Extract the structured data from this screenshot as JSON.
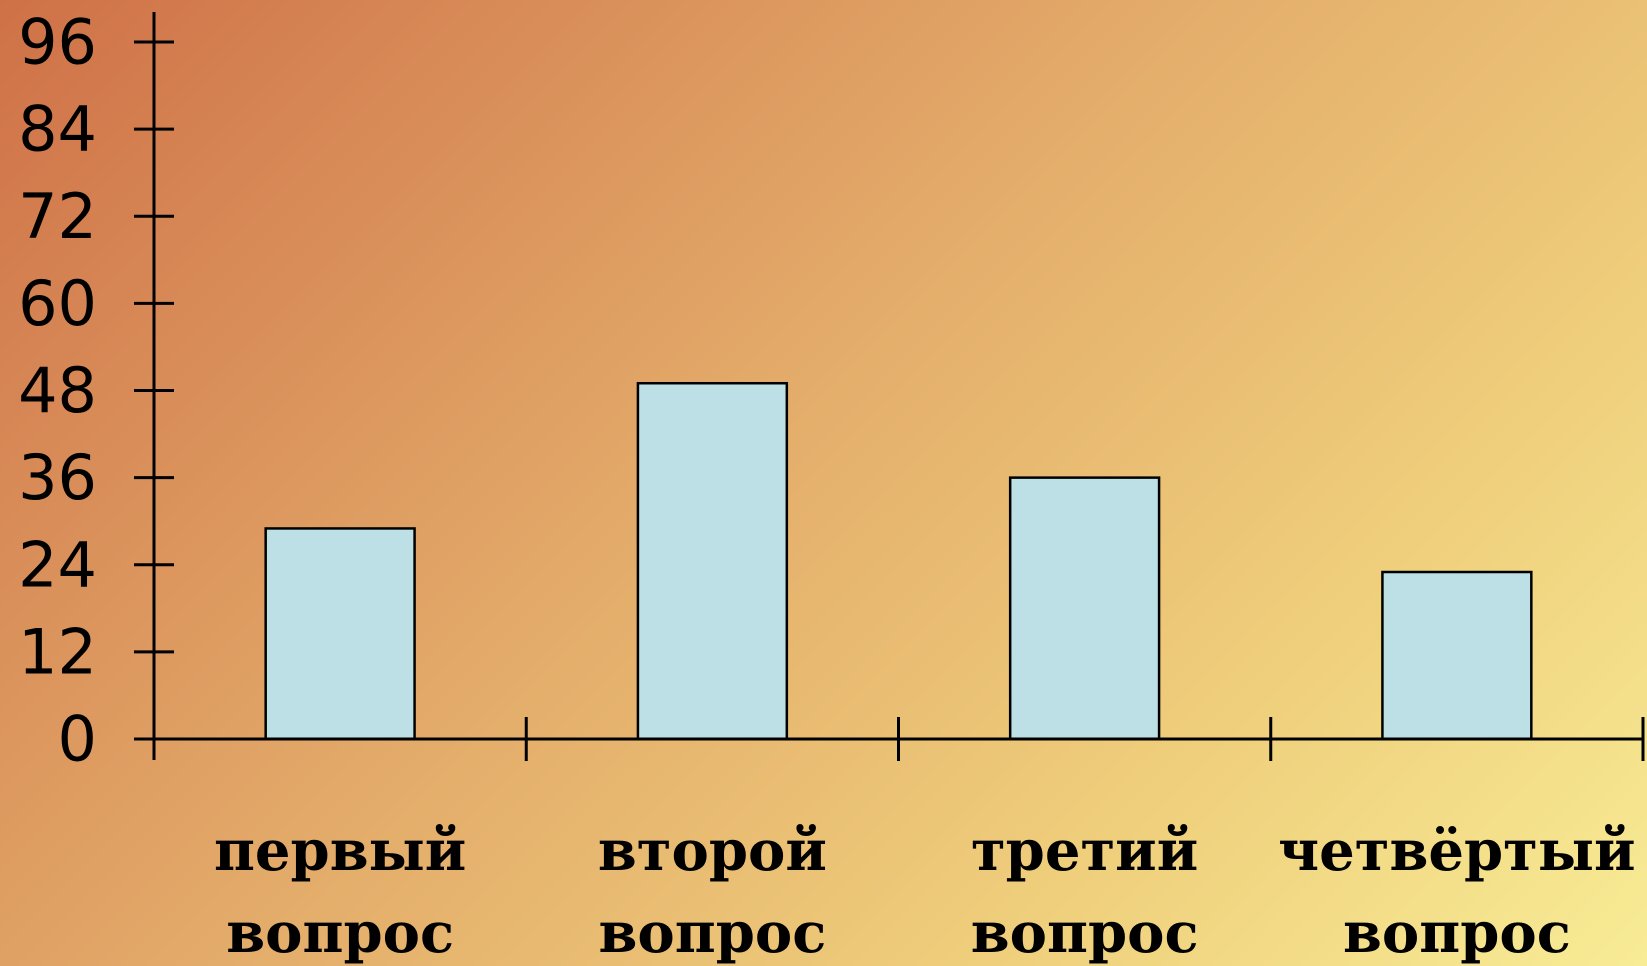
{
  "chart_data": {
    "type": "bar",
    "title": "",
    "xlabel": "",
    "ylabel": "",
    "categories": [
      [
        "первый",
        "вопрос"
      ],
      [
        "второй",
        "вопрос"
      ],
      [
        "третий",
        "вопрос"
      ],
      [
        "четвёртый",
        "вопрос"
      ]
    ],
    "values": [
      29,
      49,
      36,
      23
    ],
    "ylim": [
      0,
      96
    ],
    "yticks": [
      0,
      12,
      24,
      36,
      48,
      60,
      72,
      84,
      96
    ],
    "grid": false,
    "legend": "none",
    "colors": {
      "bar_fill": "#bce0e5",
      "bar_stroke": "#000000",
      "axis": "#000000"
    }
  }
}
